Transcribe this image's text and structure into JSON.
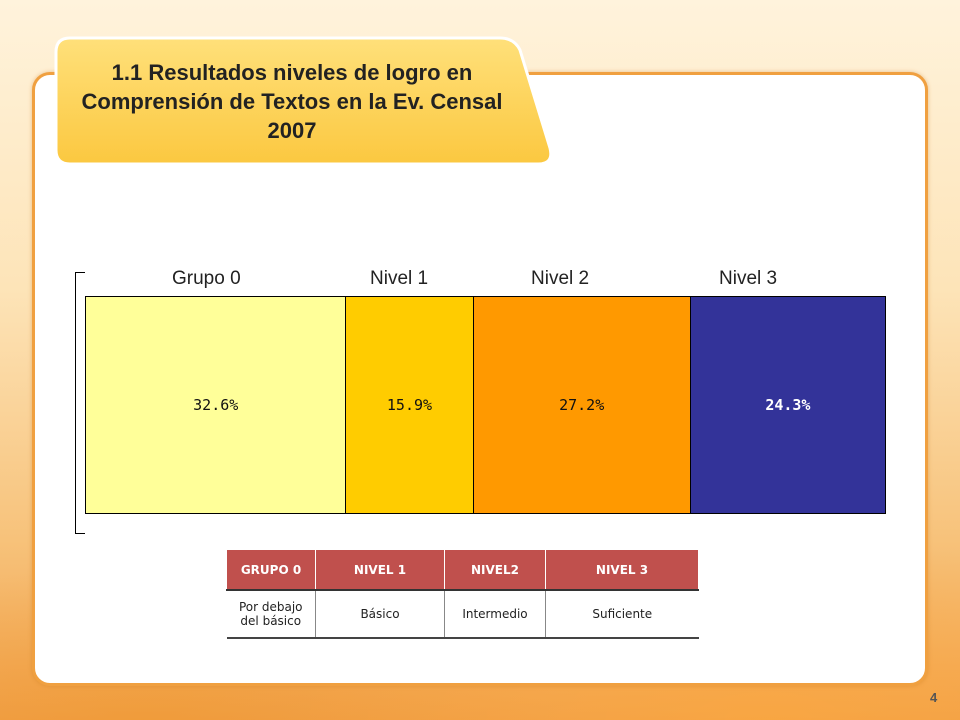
{
  "title": "1.1 Resultados niveles de logro en Comprensión de Textos en la Ev. Censal 2007",
  "chart_data": {
    "type": "bar",
    "orientation": "stacked-horizontal",
    "categories": [
      "Grupo 0",
      "Nivel 1",
      "Nivel 2",
      "Nivel 3"
    ],
    "values": [
      32.6,
      15.9,
      27.2,
      24.3
    ],
    "labels": [
      "32.6%",
      "15.9%",
      "27.2%",
      "24.3%"
    ],
    "colors": [
      "#ffff99",
      "#ffcc00",
      "#ff9900",
      "#333399"
    ],
    "title": "",
    "xlabel": "",
    "ylabel": ""
  },
  "legend_table": {
    "headers": [
      "GRUPO 0",
      "NIVEL 1",
      "NIVEL2",
      "NIVEL 3"
    ],
    "descriptions": [
      "Por debajo del básico",
      "Básico",
      "Intermedio",
      "Suficiente"
    ]
  },
  "page_number": "4"
}
